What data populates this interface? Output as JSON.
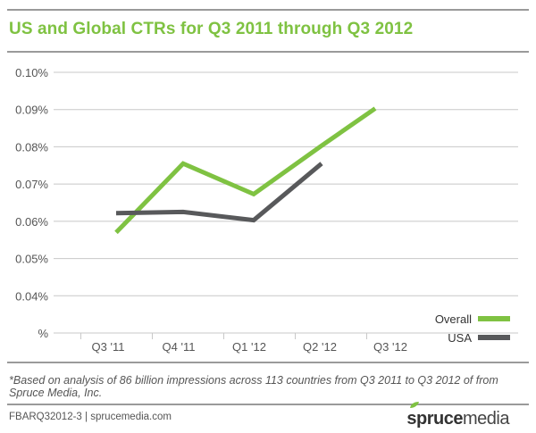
{
  "header": {
    "title": "US and Global CTRs for Q3 2011 through Q3 2012"
  },
  "chart_data": {
    "type": "line",
    "title": "US and Global CTRs for Q3 2011 through Q3 2012",
    "categories": [
      "Q3 '11",
      "Q4 '11",
      "Q1 '12",
      "Q2 '12",
      "Q3 '12"
    ],
    "y_tick_labels": [
      "%",
      "0.04%",
      "0.05%",
      "0.06%",
      "0.07%",
      "0.08%",
      "0.09%",
      "0.10%"
    ],
    "ylim": [
      0.03,
      0.1
    ],
    "y_ticks": [
      0.03,
      0.04,
      0.05,
      0.06,
      0.07,
      0.08,
      0.09,
      0.1
    ],
    "grid": true,
    "legend_position": "bottom-right",
    "series": [
      {
        "name": "Overall",
        "color": "#7fc242",
        "values": [
          0.057,
          0.0755,
          0.0673,
          0.0803,
          0.0903
        ]
      },
      {
        "name": "USA",
        "color": "#58595b",
        "values": [
          0.0622,
          0.0625,
          0.0603,
          0.0755,
          null
        ]
      }
    ]
  },
  "footnote": "*Based on analysis of 86 billion impressions across 113 countries from Q3 2011 to Q3 2012 of from Spruce Media, Inc.",
  "footer": {
    "source": "FBARQ32012-3 | sprucemedia.com",
    "brand_bold": "spruce",
    "brand_light": "media",
    "brand_color": "#7fc242"
  }
}
